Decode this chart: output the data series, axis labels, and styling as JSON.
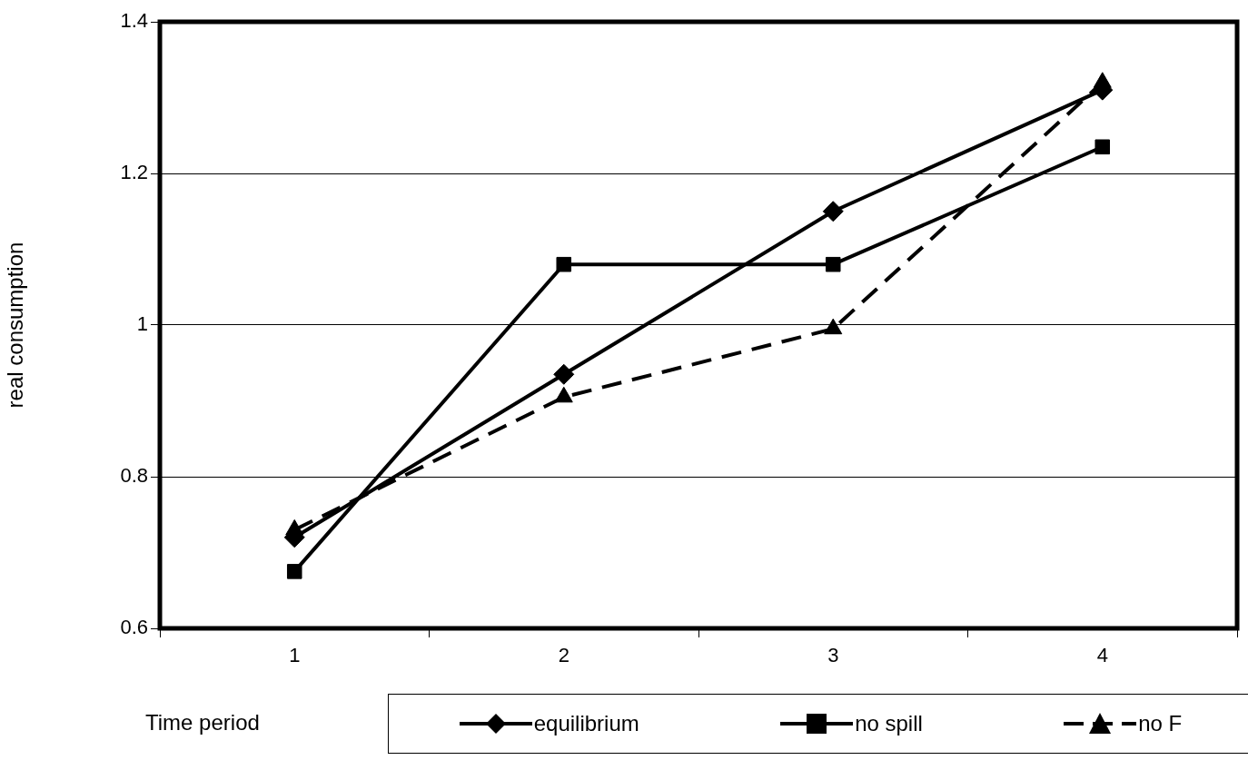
{
  "chart_data": {
    "type": "line",
    "xlabel": "Time period",
    "ylabel": "real consumption",
    "categories": [
      "1",
      "2",
      "3",
      "4"
    ],
    "series": [
      {
        "name": "equilibrium",
        "color": "#000000",
        "marker": "diamond",
        "line_style": "solid",
        "values": [
          0.72,
          0.935,
          1.15,
          1.31
        ]
      },
      {
        "name": "no spill",
        "color": "#000000",
        "marker": "square",
        "line_style": "solid",
        "values": [
          0.675,
          1.08,
          1.08,
          1.235
        ]
      },
      {
        "name": "no F",
        "color": "#000000",
        "marker": "triangle",
        "line_style": "dashed",
        "values": [
          0.73,
          0.905,
          0.995,
          1.32
        ]
      }
    ],
    "ylim": [
      0.6,
      1.4
    ],
    "yticks": [
      0.6,
      0.8,
      1,
      1.2,
      1.4
    ],
    "grid": "y",
    "legend": "bottom"
  }
}
